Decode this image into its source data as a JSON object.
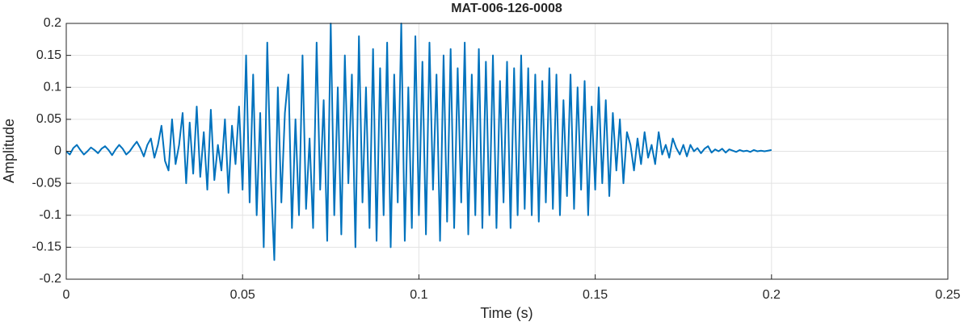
{
  "chart_data": {
    "type": "line",
    "title": "MAT-006-126-0008",
    "xlabel": "Time (s)",
    "ylabel": "Amplitude",
    "xlim": [
      0,
      0.25
    ],
    "ylim": [
      -0.2,
      0.2
    ],
    "xticks": [
      0,
      0.05,
      0.1,
      0.15,
      0.2,
      0.25
    ],
    "yticks": [
      -0.2,
      -0.15,
      -0.1,
      -0.05,
      0,
      0.05,
      0.1,
      0.15,
      0.2
    ],
    "grid": true,
    "x": [
      0,
      0.001,
      0.002,
      0.003,
      0.004,
      0.005,
      0.006,
      0.007,
      0.008,
      0.009,
      0.01,
      0.011,
      0.012,
      0.013,
      0.014,
      0.015,
      0.016,
      0.017,
      0.018,
      0.019,
      0.02,
      0.021,
      0.022,
      0.023,
      0.024,
      0.025,
      0.026,
      0.027,
      0.028,
      0.029,
      0.03,
      0.031,
      0.032,
      0.033,
      0.034,
      0.035,
      0.036,
      0.037,
      0.038,
      0.039,
      0.04,
      0.041,
      0.042,
      0.043,
      0.044,
      0.045,
      0.046,
      0.047,
      0.048,
      0.049,
      0.05,
      0.051,
      0.052,
      0.053,
      0.054,
      0.055,
      0.056,
      0.057,
      0.058,
      0.059,
      0.06,
      0.061,
      0.062,
      0.063,
      0.064,
      0.065,
      0.066,
      0.067,
      0.068,
      0.069,
      0.07,
      0.071,
      0.072,
      0.073,
      0.074,
      0.075,
      0.076,
      0.077,
      0.078,
      0.079,
      0.08,
      0.081,
      0.082,
      0.083,
      0.084,
      0.085,
      0.086,
      0.087,
      0.088,
      0.089,
      0.09,
      0.091,
      0.092,
      0.093,
      0.094,
      0.095,
      0.096,
      0.097,
      0.098,
      0.099,
      0.1,
      0.101,
      0.102,
      0.103,
      0.104,
      0.105,
      0.106,
      0.107,
      0.108,
      0.109,
      0.11,
      0.111,
      0.112,
      0.113,
      0.114,
      0.115,
      0.116,
      0.117,
      0.118,
      0.119,
      0.12,
      0.121,
      0.122,
      0.123,
      0.124,
      0.125,
      0.126,
      0.127,
      0.128,
      0.129,
      0.13,
      0.131,
      0.132,
      0.133,
      0.134,
      0.135,
      0.136,
      0.137,
      0.138,
      0.139,
      0.14,
      0.141,
      0.142,
      0.143,
      0.144,
      0.145,
      0.146,
      0.147,
      0.148,
      0.149,
      0.15,
      0.151,
      0.152,
      0.153,
      0.154,
      0.155,
      0.156,
      0.157,
      0.158,
      0.159,
      0.16,
      0.161,
      0.162,
      0.163,
      0.164,
      0.165,
      0.166,
      0.167,
      0.168,
      0.169,
      0.17,
      0.171,
      0.172,
      0.173,
      0.174,
      0.175,
      0.176,
      0.177,
      0.178,
      0.179,
      0.18,
      0.181,
      0.182,
      0.183,
      0.184,
      0.185,
      0.186,
      0.187,
      0.188,
      0.189,
      0.19,
      0.191,
      0.192,
      0.193,
      0.194,
      0.195,
      0.196,
      0.197,
      0.198,
      0.199,
      0.2
    ],
    "series": [
      {
        "name": "Amplitude",
        "color": "#0072bd",
        "values": [
          0,
          -0.005,
          0.005,
          0.01,
          0.002,
          -0.005,
          0,
          0.006,
          0.002,
          -0.003,
          0.004,
          0.008,
          0.002,
          -0.006,
          0.003,
          0.01,
          0.004,
          -0.005,
          0,
          0.008,
          0.015,
          0.005,
          -0.008,
          0.01,
          0.02,
          -0.01,
          0.01,
          0.04,
          -0.015,
          -0.03,
          0.05,
          -0.02,
          0.01,
          0.06,
          -0.05,
          0.045,
          -0.035,
          0.07,
          -0.04,
          0.03,
          -0.06,
          0.065,
          -0.045,
          0.01,
          -0.03,
          0.05,
          -0.065,
          0.04,
          -0.02,
          0.07,
          -0.06,
          0.15,
          -0.08,
          0.12,
          -0.1,
          0.06,
          -0.15,
          0.17,
          -0.04,
          -0.17,
          0.1,
          -0.08,
          0.06,
          0.12,
          -0.12,
          0.05,
          -0.1,
          0.15,
          -0.09,
          0.02,
          -0.12,
          0.17,
          -0.06,
          0.08,
          -0.14,
          0.2,
          -0.1,
          0.1,
          -0.13,
          0.15,
          -0.05,
          0.12,
          -0.15,
          0.18,
          -0.08,
          0.1,
          -0.12,
          0.16,
          -0.14,
          0.13,
          -0.1,
          0.17,
          -0.15,
          0.12,
          -0.08,
          0.2,
          -0.14,
          0.1,
          -0.12,
          0.18,
          -0.1,
          0.14,
          -0.13,
          0.17,
          -0.06,
          0.12,
          -0.14,
          0.15,
          -0.11,
          0.16,
          -0.12,
          0.13,
          -0.08,
          0.17,
          -0.13,
          0.12,
          -0.1,
          0.16,
          -0.12,
          0.14,
          -0.1,
          0.15,
          -0.12,
          0.11,
          -0.08,
          0.14,
          -0.12,
          0.13,
          -0.1,
          0.15,
          -0.09,
          0.13,
          -0.1,
          0.12,
          -0.11,
          0.11,
          -0.08,
          0.13,
          -0.09,
          0.12,
          -0.1,
          0.08,
          -0.07,
          0.12,
          -0.09,
          0.1,
          -0.06,
          0.11,
          -0.1,
          0.07,
          -0.06,
          0.1,
          -0.05,
          0.08,
          -0.07,
          0.06,
          -0.03,
          0.05,
          -0.05,
          0.03,
          0.01,
          -0.03,
          0.02,
          -0.02,
          0.03,
          -0.01,
          0.01,
          -0.02,
          0.03,
          -0.005,
          0.01,
          -0.01,
          0.02,
          0.005,
          -0.005,
          0.01,
          -0.008,
          0.01,
          0,
          0.005,
          -0.003,
          0.004,
          0.008,
          -0.002,
          0.003,
          0,
          0.004,
          -0.002,
          0.003,
          0.001,
          -0.001,
          0.002,
          0,
          0.001,
          -0.001,
          0.002,
          0,
          0.001,
          0,
          0.001,
          0.002
        ]
      }
    ]
  }
}
